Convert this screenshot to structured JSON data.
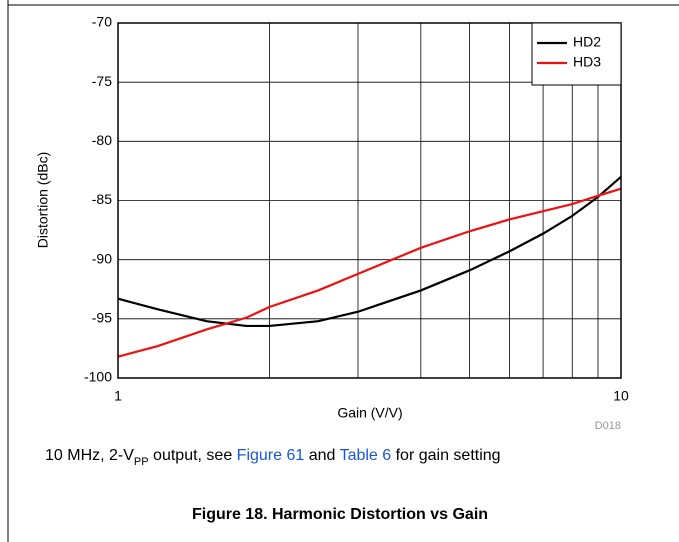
{
  "chart_data": {
    "type": "line",
    "title": "Figure 18. Harmonic Distortion vs Gain",
    "caption": [
      "10 MHz, 2-V",
      "PP",
      " output, see ",
      "Figure 61",
      " and ",
      "Table 6",
      " for gain setting"
    ],
    "xlabel": "Gain (V/V)",
    "ylabel": "Distortion (dBc)",
    "figure_id": "D018",
    "xscale": "log",
    "xlim": [
      1,
      10
    ],
    "xticks": [
      1,
      10
    ],
    "xminor_ticks": [
      2,
      3,
      4,
      5,
      6,
      7,
      8,
      9
    ],
    "ylim": [
      -100,
      -70
    ],
    "yticks": [
      -100,
      -95,
      -90,
      -85,
      -80,
      -75,
      -70
    ],
    "grid": true,
    "legend": "upper right",
    "x": [
      1,
      1.2,
      1.5,
      1.8,
      2,
      2.5,
      3,
      4,
      5,
      6,
      7,
      8,
      9,
      10
    ],
    "series": [
      {
        "name": "HD2",
        "color": "#000000",
        "values": [
          -93.3,
          -94.2,
          -95.2,
          -95.6,
          -95.6,
          -95.2,
          -94.4,
          -92.6,
          -90.9,
          -89.3,
          -87.8,
          -86.3,
          -84.7,
          -83.0
        ]
      },
      {
        "name": "HD3",
        "color": "#ee1111",
        "values": [
          -98.2,
          -97.3,
          -95.9,
          -94.9,
          -94.0,
          -92.6,
          -91.2,
          -89.0,
          -87.6,
          -86.6,
          -85.9,
          -85.3,
          -84.6,
          -84.0
        ]
      }
    ]
  }
}
